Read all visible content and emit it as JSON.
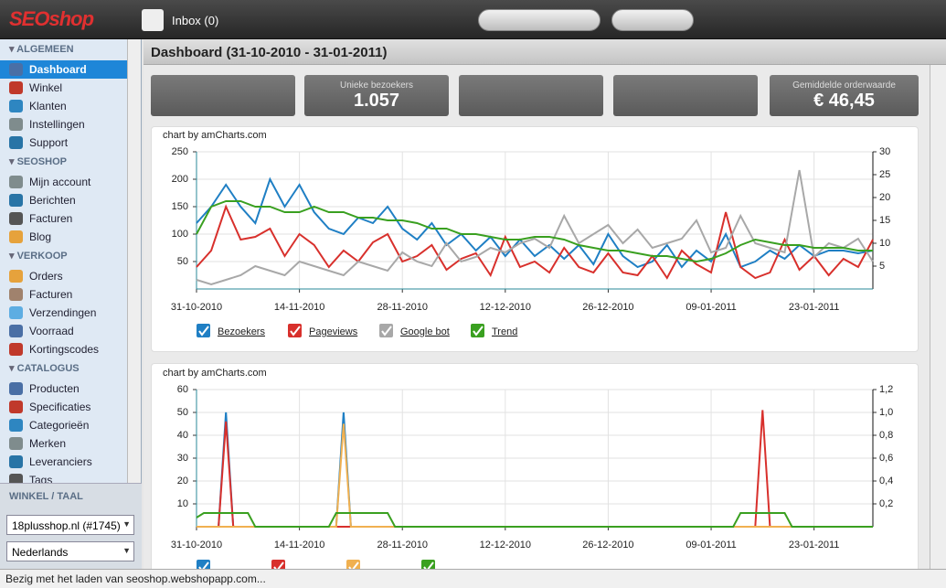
{
  "app": {
    "logo": "SEOshop",
    "inbox": "Inbox (0)",
    "status": "Bezig met het laden van seoshop.webshopapp.com..."
  },
  "sidebar": {
    "sections": [
      {
        "title": "ALGEMEEN",
        "items": [
          {
            "label": "Dashboard",
            "selected": true
          },
          {
            "label": "Winkel"
          },
          {
            "label": "Klanten"
          },
          {
            "label": "Instellingen"
          },
          {
            "label": "Support"
          }
        ]
      },
      {
        "title": "SEOSHOP",
        "items": [
          {
            "label": "Mijn account"
          },
          {
            "label": "Berichten"
          },
          {
            "label": "Facturen"
          },
          {
            "label": "Blog"
          }
        ]
      },
      {
        "title": "VERKOOP",
        "items": [
          {
            "label": "Orders"
          },
          {
            "label": "Facturen"
          },
          {
            "label": "Verzendingen"
          },
          {
            "label": "Voorraad"
          },
          {
            "label": "Kortingscodes"
          }
        ]
      },
      {
        "title": "CATALOGUS",
        "items": [
          {
            "label": "Producten"
          },
          {
            "label": "Specificaties"
          },
          {
            "label": "Categorieën"
          },
          {
            "label": "Merken"
          },
          {
            "label": "Leveranciers"
          },
          {
            "label": "Tags"
          }
        ]
      }
    ],
    "store_title": "WINKEL / TAAL",
    "store": "18plusshop.nl (#1745)",
    "language": "Nederlands"
  },
  "header": {
    "title": "Dashboard (31-10-2010 - 31-01-2011)"
  },
  "stats": [
    {
      "label": "Unieke bezoekers",
      "value": "1.057"
    },
    {
      "label": "Gemiddelde orderwaarde",
      "value": "€ 46,45"
    }
  ],
  "chart_data": [
    {
      "type": "line",
      "credit": "chart by amCharts.com",
      "x": [
        "31-10-2010",
        "02-11-2010",
        "04-11-2010",
        "06-11-2010",
        "08-11-2010",
        "10-11-2010",
        "12-11-2010",
        "14-11-2010",
        "16-11-2010",
        "18-11-2010",
        "20-11-2010",
        "22-11-2010",
        "24-11-2010",
        "26-11-2010",
        "28-11-2010",
        "30-11-2010",
        "02-12-2010",
        "04-12-2010",
        "06-12-2010",
        "08-12-2010",
        "10-12-2010",
        "12-12-2010",
        "14-12-2010",
        "16-12-2010",
        "18-12-2010",
        "20-12-2010",
        "22-12-2010",
        "24-12-2010",
        "26-12-2010",
        "28-12-2010",
        "30-12-2010",
        "01-01-2011",
        "03-01-2011",
        "05-01-2011",
        "07-01-2011",
        "09-01-2011",
        "11-01-2011",
        "13-01-2011",
        "15-01-2011",
        "17-01-2011",
        "19-01-2011",
        "21-01-2011",
        "23-01-2011",
        "25-01-2011",
        "27-01-2011",
        "29-01-2011",
        "31-01-2011"
      ],
      "xlim": [
        "31-10-2010",
        "31-01-2011"
      ],
      "xticks": [
        "31-10-2010",
        "14-11-2010",
        "28-11-2010",
        "12-12-2010",
        "26-12-2010",
        "09-01-2011",
        "23-01-2011"
      ],
      "ylim": [
        0,
        250
      ],
      "yticks": [
        50,
        100,
        150,
        200,
        250
      ],
      "y2lim": [
        0,
        30
      ],
      "y2ticks": [
        5,
        10,
        15,
        20,
        25,
        30
      ],
      "grid": true,
      "series": [
        {
          "name": "Bezoekers",
          "color": "#1f7fc4",
          "values": [
            120,
            150,
            190,
            150,
            120,
            200,
            150,
            190,
            140,
            110,
            100,
            130,
            120,
            150,
            110,
            90,
            120,
            80,
            100,
            70,
            95,
            60,
            90,
            60,
            80,
            55,
            80,
            45,
            100,
            60,
            40,
            50,
            80,
            40,
            70,
            50,
            100,
            40,
            50,
            70,
            55,
            80,
            60,
            70,
            70,
            65,
            70
          ]
        },
        {
          "name": "Pageviews",
          "color": "#d8302c",
          "values": [
            40,
            70,
            150,
            90,
            95,
            110,
            60,
            100,
            80,
            40,
            70,
            50,
            85,
            100,
            50,
            60,
            80,
            35,
            55,
            65,
            25,
            95,
            40,
            50,
            30,
            75,
            40,
            30,
            65,
            30,
            25,
            60,
            20,
            70,
            45,
            30,
            140,
            40,
            20,
            30,
            90,
            35,
            60,
            25,
            55,
            40,
            90
          ]
        },
        {
          "name": "Google bot",
          "color": "#a8a8a8",
          "axis": "y2",
          "values": [
            2,
            1,
            2,
            3,
            5,
            4,
            3,
            6,
            5,
            4,
            3,
            6,
            5,
            4,
            8,
            6,
            5,
            10,
            6,
            7,
            9,
            8,
            10,
            11,
            9,
            16,
            10,
            12,
            14,
            10,
            13,
            9,
            10,
            11,
            15,
            8,
            9,
            16,
            10,
            9,
            8,
            26,
            7,
            10,
            9,
            11,
            6
          ]
        },
        {
          "name": "Trend",
          "color": "#3aa020",
          "values": [
            100,
            150,
            160,
            160,
            150,
            150,
            140,
            140,
            150,
            140,
            140,
            130,
            130,
            125,
            125,
            120,
            110,
            110,
            100,
            100,
            95,
            90,
            90,
            95,
            95,
            90,
            80,
            75,
            70,
            70,
            65,
            60,
            60,
            55,
            50,
            55,
            65,
            80,
            90,
            85,
            80,
            80,
            75,
            75,
            75,
            70,
            70
          ]
        }
      ]
    },
    {
      "type": "line",
      "credit": "chart by amCharts.com",
      "xlim": [
        "31-10-2010",
        "31-01-2011"
      ],
      "xticks": [
        "31-10-2010",
        "14-11-2010",
        "28-11-2010",
        "12-12-2010",
        "26-12-2010",
        "09-01-2011",
        "23-01-2011"
      ],
      "ylim": [
        0,
        60
      ],
      "yticks": [
        10,
        20,
        30,
        40,
        50,
        60
      ],
      "y2lim": [
        0,
        1.2
      ],
      "y2ticks": [
        {
          "value": 0.2,
          "label": "0,2"
        },
        {
          "value": 0.4,
          "label": "0,4"
        },
        {
          "value": 0.6,
          "label": "0,6"
        },
        {
          "value": 0.8,
          "label": "0,8"
        },
        {
          "value": 1,
          "label": "1,0"
        },
        {
          "value": 1.2,
          "label": "1,2"
        }
      ],
      "grid": true,
      "series": [
        {
          "color": "#1f7fc4",
          "x": [
            "31-10-2010",
            "03-11-2010",
            "04-11-2010",
            "05-11-2010",
            "19-11-2010",
            "20-11-2010",
            "21-11-2010",
            "31-01-2011"
          ],
          "values": [
            0,
            0,
            50,
            0,
            0,
            50,
            0,
            0
          ]
        },
        {
          "color": "#d8302c",
          "x": [
            "31-10-2010",
            "03-11-2010",
            "04-11-2010",
            "05-11-2010",
            "15-01-2011",
            "16-01-2011",
            "17-01-2011",
            "31-01-2011"
          ],
          "values": [
            0,
            0,
            46,
            0,
            0,
            51,
            0,
            0
          ]
        },
        {
          "color": "#f0b050",
          "x": [
            "31-10-2010",
            "19-11-2010",
            "20-11-2010",
            "21-11-2010",
            "31-01-2011"
          ],
          "values": [
            0,
            0,
            45,
            0,
            0
          ]
        },
        {
          "color": "#3aa020",
          "axis": "y2",
          "x": [
            "31-10-2010",
            "01-11-2010",
            "07-11-2010",
            "08-11-2010",
            "18-11-2010",
            "19-11-2010",
            "26-11-2010",
            "27-11-2010",
            "12-01-2011",
            "13-01-2011",
            "19-01-2011",
            "20-01-2011",
            "31-01-2011"
          ],
          "values": [
            0.08,
            0.12,
            0.12,
            0,
            0,
            0.12,
            0.12,
            0,
            0,
            0.12,
            0.12,
            0,
            0
          ]
        }
      ]
    }
  ]
}
